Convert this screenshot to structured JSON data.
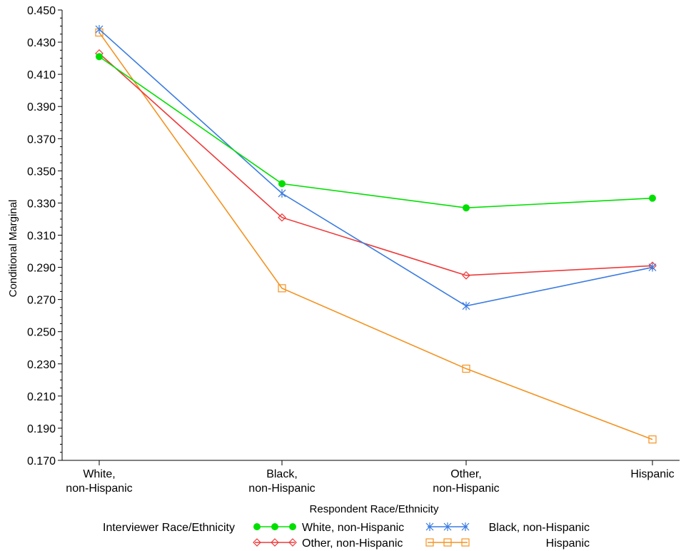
{
  "chart_data": {
    "type": "line",
    "xlabel": "Respondent Race/Ethnicity",
    "ylabel": "Conditional Marginal",
    "categories": [
      [
        "White,",
        "non-Hispanic"
      ],
      [
        "Black,",
        "non-Hispanic"
      ],
      [
        "Other,",
        "non-Hispanic"
      ],
      [
        "Hispanic"
      ]
    ],
    "ylim": [
      0.17,
      0.45
    ],
    "yticks": [
      "0.170",
      "0.190",
      "0.210",
      "0.230",
      "0.250",
      "0.270",
      "0.290",
      "0.310",
      "0.330",
      "0.350",
      "0.370",
      "0.390",
      "0.410",
      "0.430",
      "0.450"
    ],
    "grid": false,
    "legend": {
      "title": "Interviewer Race/Ethnicity",
      "placement": "bottom"
    },
    "series": [
      {
        "name": "White, non-Hispanic",
        "color": "#00e000",
        "marker": "filled-circle",
        "values": [
          0.421,
          0.342,
          0.327,
          0.333
        ]
      },
      {
        "name": "Black, non-Hispanic",
        "color": "#3a7be0",
        "marker": "star",
        "values": [
          0.438,
          0.336,
          0.266,
          0.29
        ]
      },
      {
        "name": "Other, non-Hispanic",
        "color": "#ee3a3a",
        "marker": "diamond",
        "values": [
          0.423,
          0.321,
          0.285,
          0.291
        ]
      },
      {
        "name": "Hispanic",
        "color": "#f39322",
        "marker": "square",
        "values": [
          0.436,
          0.277,
          0.227,
          0.183
        ]
      }
    ]
  }
}
